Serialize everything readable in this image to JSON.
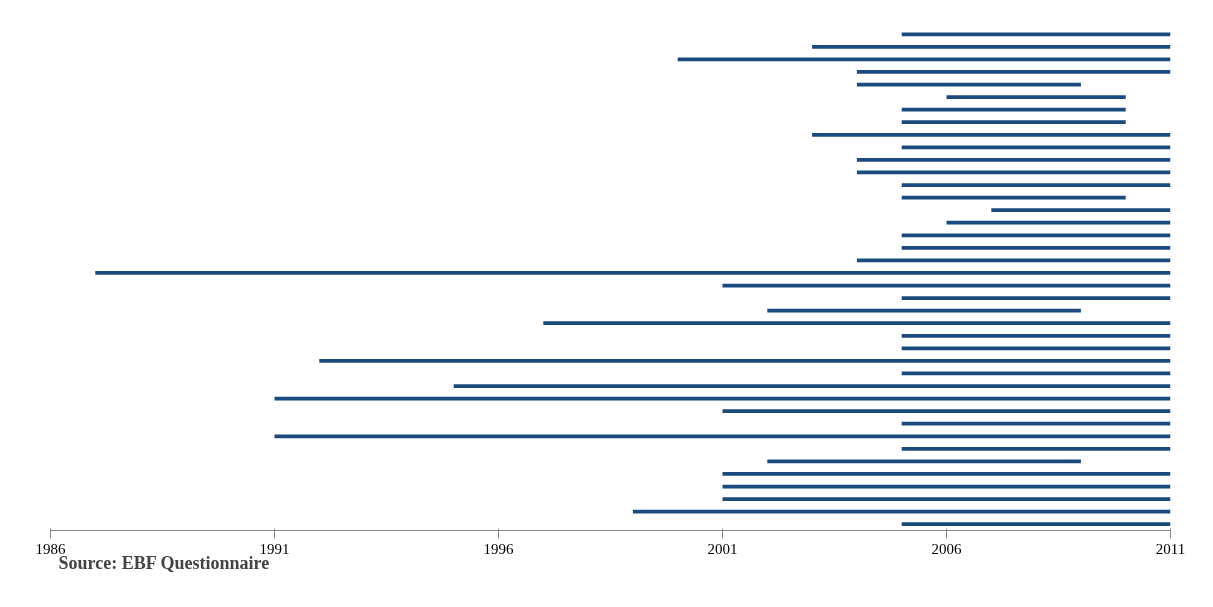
{
  "chart_data": {
    "type": "bar",
    "orientation": "horizontal",
    "categories": [
      null,
      null,
      null,
      null,
      null,
      null,
      null,
      null,
      null,
      null,
      null,
      null,
      null,
      null,
      null,
      null,
      null,
      null,
      null,
      null,
      null,
      null,
      null,
      null,
      null,
      null,
      null,
      null,
      null,
      null,
      null,
      null,
      null,
      null,
      null,
      null,
      null,
      null,
      null,
      null
    ],
    "series": [
      {
        "color": "#1b4a7e",
        "base": [
          2005,
          2003,
          2000,
          2004,
          2004,
          2006,
          2005,
          2005,
          2003,
          2005,
          2004,
          2004,
          2005,
          2005,
          2007,
          2006,
          2005,
          2005,
          2004,
          1987,
          2001,
          2005,
          2002,
          1997,
          2005,
          2005,
          1992,
          2005,
          1995,
          1991,
          2001,
          2005,
          1991,
          2005,
          2002,
          2001,
          2001,
          2001,
          1999,
          2005
        ],
        "values": [
          6,
          8,
          11,
          7,
          5,
          4,
          5,
          5,
          8,
          6,
          7,
          7,
          6,
          5,
          4,
          5,
          6,
          6,
          7,
          24,
          10,
          6,
          7,
          14,
          6,
          6,
          19,
          6,
          16,
          20,
          10,
          6,
          20,
          6,
          7,
          10,
          10,
          10,
          12,
          6
        ]
      }
    ],
    "xlim": [
      1986,
      2011
    ],
    "xticks": [
      1986,
      1991,
      1996,
      2001,
      2006,
      2011
    ],
    "grid": false,
    "annotations": [
      "Source: EBF Questionnaire"
    ]
  }
}
